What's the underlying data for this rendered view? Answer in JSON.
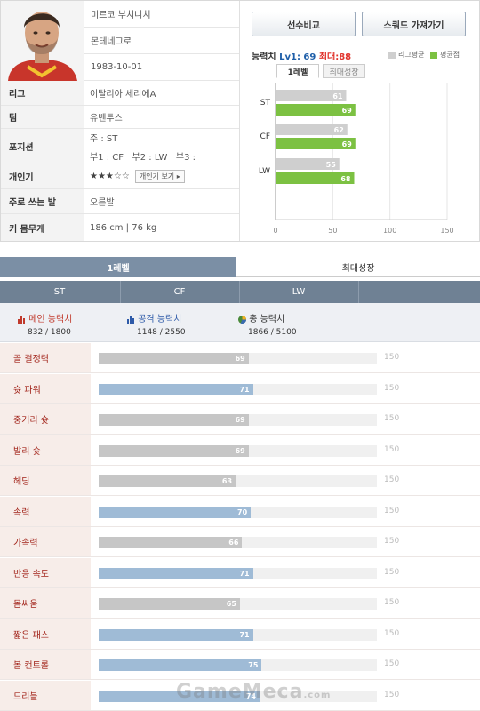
{
  "colors": {
    "league_bar": "#cfcfcf",
    "player_bar": "#7cc142",
    "bar_blue": "#9fbbd6",
    "bar_gray": "#c6c6c6",
    "label_red": "#a2241a",
    "max_red": "#e0312a",
    "lv_blue": "#1f5fa9"
  },
  "player": {
    "name": "미르코 부치니치",
    "nation": "몬테네그로",
    "birth": "1983-10-01",
    "photo_icon": "player-photo"
  },
  "info": [
    {
      "label": "리그",
      "value": "이탈리아 세리에A"
    },
    {
      "label": "팀",
      "value": "유벤투스"
    },
    {
      "label": "포지션",
      "main": "주 : ST",
      "sub": "부1 : CF   부2 : LW   부3 :"
    },
    {
      "label": "개인기",
      "stars": "★★★☆☆",
      "button": "개인기 보기 ▸"
    },
    {
      "label": "주로 쓰는 발",
      "value": "오른발"
    },
    {
      "label": "키 몸무게",
      "value": "186 cm  |  76 kg"
    }
  ],
  "buttons": {
    "compare": "선수비교",
    "squad": "스쿼드 가져가기"
  },
  "ability": {
    "title": "능력치",
    "lv": "Lv1: 69",
    "max": "최대:88",
    "tab_lv1": "1레벨",
    "tab_max": "최대성장",
    "legend_league": "리그평균",
    "legend_player": "평균점"
  },
  "chart_data": {
    "type": "bar",
    "orientation": "horizontal",
    "categories": [
      "ST",
      "CF",
      "LW"
    ],
    "series": [
      {
        "name": "리그평균",
        "values": [
          61,
          62,
          55
        ]
      },
      {
        "name": "평균점",
        "values": [
          69,
          69,
          68
        ]
      }
    ],
    "xlim": [
      0,
      150
    ],
    "xticks": [
      "0",
      "50",
      "100",
      "150"
    ],
    "legend": "top-right"
  },
  "bottom_tabs": {
    "lv1": "1레벨",
    "max": "최대성장"
  },
  "positions": [
    "ST",
    "CF",
    "LW"
  ],
  "summary": [
    {
      "icon": "bar-chart-red-icon",
      "title": "메인 능력치",
      "value": "832 / 1800"
    },
    {
      "icon": "bar-chart-blue-icon",
      "title": "공격 능력치",
      "value": "1148 / 2550"
    },
    {
      "icon": "pie-chart-icon",
      "title": "총 능력치",
      "value": "1866 / 5100"
    }
  ],
  "attributes": [
    {
      "label": "골 결정력",
      "value": 69,
      "max": "150",
      "color": "gray"
    },
    {
      "label": "슛 파워",
      "value": 71,
      "max": "150",
      "color": "blue"
    },
    {
      "label": "중거리 슛",
      "value": 69,
      "max": "150",
      "color": "gray"
    },
    {
      "label": "발리 슛",
      "value": 69,
      "max": "150",
      "color": "gray"
    },
    {
      "label": "헤딩",
      "value": 63,
      "max": "150",
      "color": "gray"
    },
    {
      "label": "속력",
      "value": 70,
      "max": "150",
      "color": "blue"
    },
    {
      "label": "가속력",
      "value": 66,
      "max": "150",
      "color": "gray"
    },
    {
      "label": "반응 속도",
      "value": 71,
      "max": "150",
      "color": "blue"
    },
    {
      "label": "몸싸움",
      "value": 65,
      "max": "150",
      "color": "gray"
    },
    {
      "label": "짧은 패스",
      "value": 71,
      "max": "150",
      "color": "blue"
    },
    {
      "label": "볼 컨트롤",
      "value": 75,
      "max": "150",
      "color": "blue"
    },
    {
      "label": "드리블",
      "value": 74,
      "max": "150",
      "color": "blue"
    }
  ],
  "watermark": {
    "main": "GameMeca",
    "sub": ".com"
  }
}
